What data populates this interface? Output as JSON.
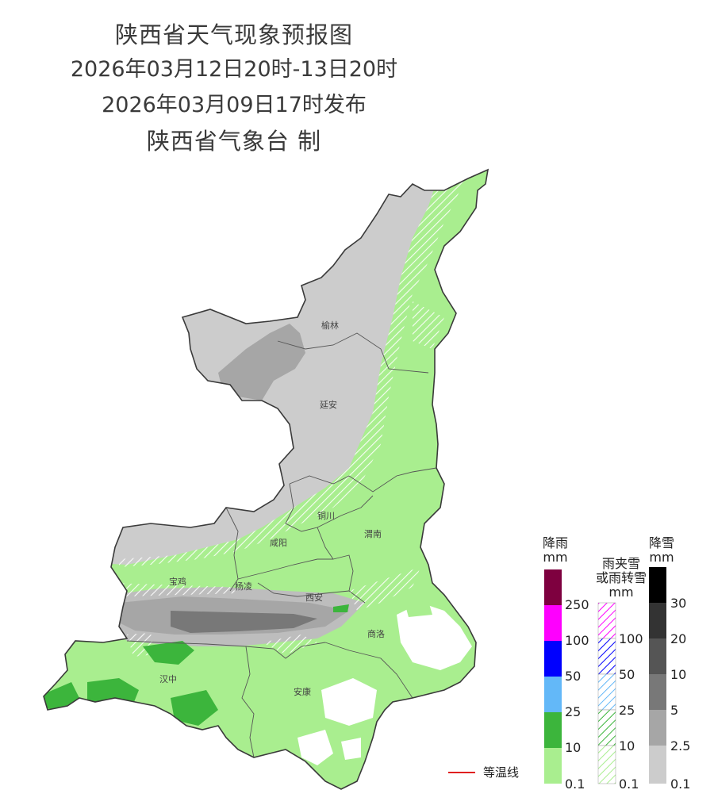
{
  "header": {
    "title": "陕西省天气现象预报图",
    "period": "2026年03月12日20时-13日20时",
    "issued": "2026年03月09日17时发布",
    "producer": "陕西省气象台 制"
  },
  "cities": [
    {
      "name": "榆林"
    },
    {
      "name": "延安"
    },
    {
      "name": "铜川"
    },
    {
      "name": "咸阳"
    },
    {
      "name": "渭南"
    },
    {
      "name": "宝鸡"
    },
    {
      "name": "杨凌"
    },
    {
      "name": "西安"
    },
    {
      "name": "商洛"
    },
    {
      "name": "汉中"
    },
    {
      "name": "安康"
    }
  ],
  "legend": {
    "rain": {
      "title": "降雨",
      "unit": "mm",
      "levels": [
        "0.1",
        "10",
        "25",
        "50",
        "100",
        "250"
      ],
      "colors": [
        "#a9ee8f",
        "#3cb53c",
        "#63b8f8",
        "#0000fe",
        "#fe00fe",
        "#7e003f"
      ]
    },
    "sleet": {
      "title": "雨夹雪",
      "title2": "或雨转雪",
      "unit": "mm",
      "levels": [
        "0.1",
        "10",
        "25",
        "50",
        "100"
      ],
      "colors": [
        "#a9ee8f",
        "#3cb53c",
        "#63b8f8",
        "#0000fe",
        "#fe00fe"
      ]
    },
    "snow": {
      "title": "降雪",
      "unit": "mm",
      "levels": [
        "0.1",
        "2.5",
        "5",
        "10",
        "20",
        "30"
      ],
      "colors": [
        "#cccccc",
        "#a6a6a6",
        "#787878",
        "#555555",
        "#333333",
        "#000000"
      ]
    },
    "isotherm_label": "等温线",
    "isotherm_color": "#e02020"
  }
}
